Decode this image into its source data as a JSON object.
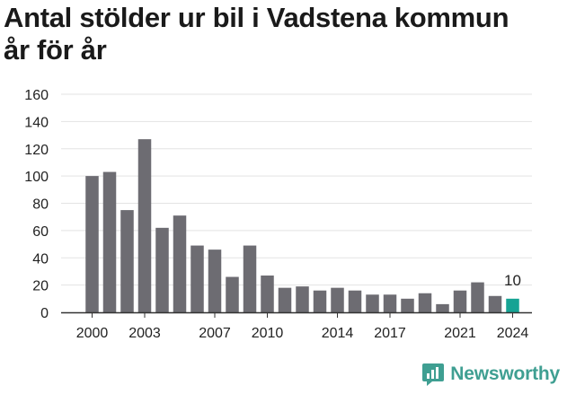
{
  "title_line1": "Antal stölder ur bil i Vadstena kommun",
  "title_line2": "år för år",
  "brand": {
    "name": "Newsworthy",
    "icon": "newsworthy-logo-icon",
    "color": "#3f9f92"
  },
  "chart_data": {
    "type": "bar",
    "title": "Antal stölder ur bil i Vadstena kommun år för år",
    "xlabel": "",
    "ylabel": "",
    "categories": [
      "2000",
      "2001",
      "2002",
      "2003",
      "2004",
      "2005",
      "2006",
      "2007",
      "2008",
      "2009",
      "2010",
      "2011",
      "2012",
      "2013",
      "2014",
      "2015",
      "2016",
      "2017",
      "2018",
      "2019",
      "2020",
      "2021",
      "2022",
      "2023",
      "2024"
    ],
    "values": [
      100,
      103,
      75,
      127,
      62,
      71,
      49,
      46,
      26,
      49,
      27,
      18,
      19,
      16,
      18,
      16,
      13,
      13,
      10,
      14,
      6,
      16,
      22,
      12,
      10
    ],
    "ylim": [
      0,
      160
    ],
    "yticks": [
      0,
      20,
      40,
      60,
      80,
      100,
      120,
      140,
      160
    ],
    "xtick_labels": [
      "2000",
      "2003",
      "2007",
      "2010",
      "2014",
      "2017",
      "2021",
      "2024"
    ],
    "grid": true,
    "bar_color": "#6d6c72",
    "highlight_category": "2024",
    "highlight_color": "#16a394",
    "data_labels": [
      {
        "category": "2024",
        "text": "10"
      }
    ]
  }
}
